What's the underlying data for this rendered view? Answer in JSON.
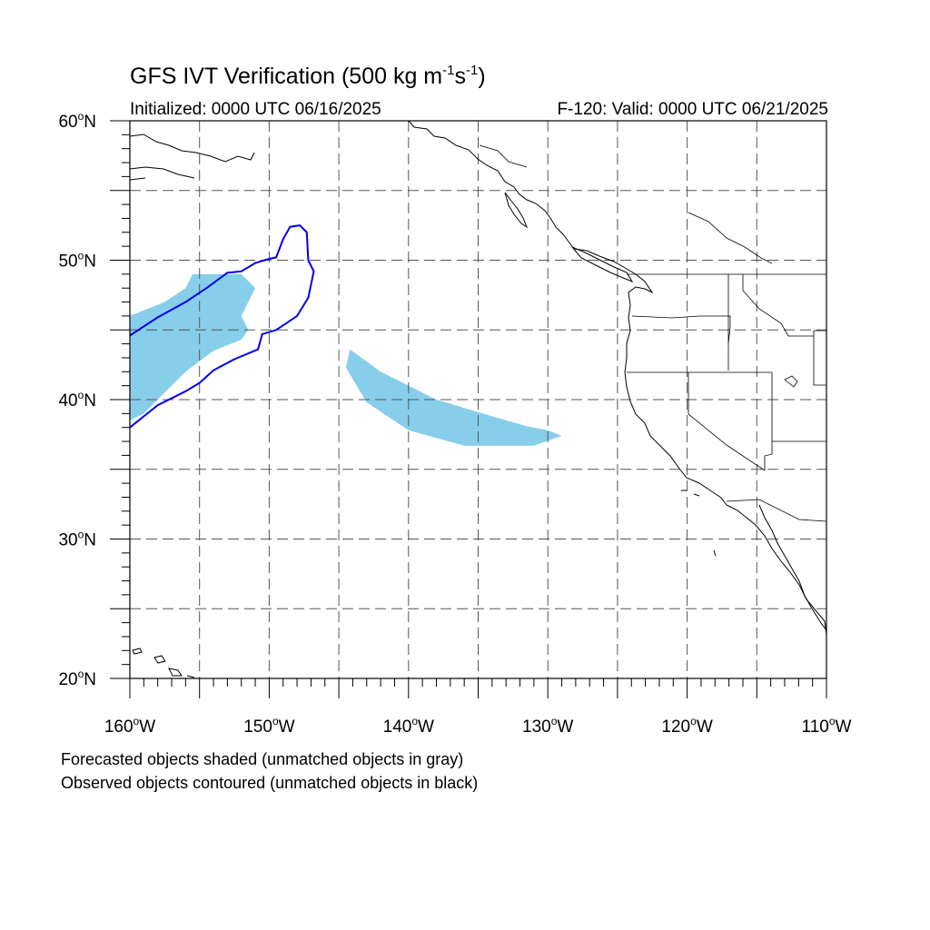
{
  "header": {
    "title_prefix": "GFS IVT Verification (500 kg m",
    "title_exp1": "-1",
    "title_mid": "s",
    "title_exp2": "-1",
    "title_suffix": ")",
    "initialized": "Initialized: 0000 UTC 06/16/2025",
    "valid": "F-120: Valid: 0000 UTC 06/21/2025"
  },
  "map": {
    "lon_range": [
      -160,
      -110
    ],
    "lat_range": [
      20,
      60
    ],
    "grid": true,
    "lat_labels": [
      {
        "lat": 60,
        "num": "60",
        "hemi": "N"
      },
      {
        "lat": 50,
        "num": "50",
        "hemi": "N"
      },
      {
        "lat": 40,
        "num": "40",
        "hemi": "N"
      },
      {
        "lat": 30,
        "num": "30",
        "hemi": "N"
      },
      {
        "lat": 20,
        "num": "20",
        "hemi": "N"
      }
    ],
    "lon_labels": [
      {
        "lon": -160,
        "num": "160",
        "hemi": "W"
      },
      {
        "lon": -150,
        "num": "150",
        "hemi": "W"
      },
      {
        "lon": -140,
        "num": "140",
        "hemi": "W"
      },
      {
        "lon": -130,
        "num": "130",
        "hemi": "W"
      },
      {
        "lon": -120,
        "num": "120",
        "hemi": "W"
      },
      {
        "lon": -110,
        "num": "110",
        "hemi": "W"
      }
    ],
    "colors": {
      "forecast_fill": "#87ceeb",
      "observed_contour": "#0000ee",
      "coast": "#000000"
    }
  },
  "objects": {
    "forecast_shaded": [
      {
        "matched": true,
        "outline": [
          [
            -160,
            46
          ],
          [
            -157.5,
            47
          ],
          [
            -156,
            48
          ],
          [
            -155.5,
            49
          ],
          [
            -152,
            49
          ],
          [
            -151,
            48
          ],
          [
            -151.5,
            47
          ],
          [
            -152,
            46
          ],
          [
            -151.5,
            45
          ],
          [
            -152,
            44.3
          ],
          [
            -154,
            43.5
          ],
          [
            -156,
            42
          ],
          [
            -157.5,
            40.5
          ],
          [
            -159,
            39
          ],
          [
            -160,
            38.5
          ]
        ]
      },
      {
        "matched": true,
        "outline": [
          [
            -144.2,
            43.6
          ],
          [
            -142,
            42
          ],
          [
            -138,
            40
          ],
          [
            -134,
            38.8
          ],
          [
            -131.5,
            38.1
          ],
          [
            -130,
            37.8
          ],
          [
            -129,
            37.4
          ],
          [
            -131,
            36.7
          ],
          [
            -136,
            36.7
          ],
          [
            -140,
            37.8
          ],
          [
            -143,
            39.8
          ],
          [
            -144.5,
            42.3
          ]
        ]
      }
    ],
    "observed_contoured": [
      {
        "matched": true,
        "outline": [
          [
            -160,
            44.6
          ],
          [
            -158,
            45.9
          ],
          [
            -156,
            47
          ],
          [
            -154.5,
            48
          ],
          [
            -153,
            49.1
          ],
          [
            -152,
            49.2
          ],
          [
            -151,
            49.8
          ],
          [
            -150,
            50.1
          ],
          [
            -149.5,
            50.2
          ],
          [
            -149,
            51.5
          ],
          [
            -148.5,
            52.4
          ],
          [
            -147.8,
            52.5
          ],
          [
            -147.3,
            52
          ],
          [
            -147.2,
            50
          ],
          [
            -146.8,
            49.2
          ],
          [
            -147.2,
            47.3
          ],
          [
            -148,
            46
          ],
          [
            -149.5,
            45
          ],
          [
            -150.5,
            44.7
          ],
          [
            -150.8,
            43.6
          ],
          [
            -152.5,
            42.9
          ],
          [
            -154,
            42.1
          ],
          [
            -155,
            41.2
          ],
          [
            -156,
            40.6
          ],
          [
            -158,
            39.6
          ],
          [
            -160,
            38
          ]
        ]
      }
    ]
  },
  "footer": {
    "line1": "Forecasted objects shaded (unmatched objects in gray)",
    "line2": "Observed objects contoured (unmatched objects in black)"
  }
}
